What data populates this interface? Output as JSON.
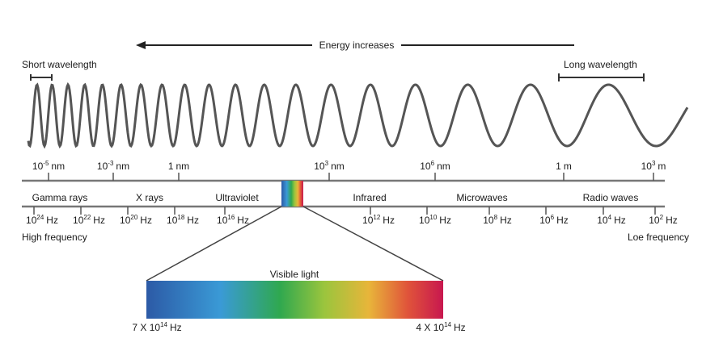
{
  "energy_label": "Energy increases",
  "short_wavelength": "Short wavelength",
  "long_wavelength": "Long wavelength",
  "wavelengths": [
    {
      "base": "10",
      "exp": "-5",
      "unit": "nm"
    },
    {
      "base": "10",
      "exp": "-3",
      "unit": "nm"
    },
    {
      "base": "1",
      "unit": "nm"
    },
    {
      "base": "10",
      "exp": "3",
      "unit": "nm"
    },
    {
      "base": "10",
      "exp": "6",
      "unit": "nm"
    },
    {
      "base": "1",
      "unit": "m"
    },
    {
      "base": "10",
      "exp": "3",
      "unit": "m"
    }
  ],
  "bands": [
    "Gamma rays",
    "X rays",
    "Ultraviolet",
    "Infrared",
    "Microwaves",
    "Radio waves"
  ],
  "frequencies": [
    {
      "base": "10",
      "exp": "24",
      "unit": "Hz"
    },
    {
      "base": "10",
      "exp": "22",
      "unit": "Hz"
    },
    {
      "base": "10",
      "exp": "20",
      "unit": "Hz"
    },
    {
      "base": "10",
      "exp": "18",
      "unit": "Hz"
    },
    {
      "base": "10",
      "exp": "16",
      "unit": "Hz"
    },
    {
      "base": "10",
      "exp": "12",
      "unit": "Hz"
    },
    {
      "base": "10",
      "exp": "10",
      "unit": "Hz"
    },
    {
      "base": "10",
      "exp": "8",
      "unit": "Hz"
    },
    {
      "base": "10",
      "exp": "6",
      "unit": "Hz"
    },
    {
      "base": "10",
      "exp": "4",
      "unit": "Hz"
    },
    {
      "base": "10",
      "exp": "2",
      "unit": "Hz"
    }
  ],
  "high_frequency": "High frequency",
  "low_frequency": "Loe frequency",
  "visible_light": {
    "title": "Visible light",
    "left": {
      "base": "7 X 10",
      "exp": "14",
      "unit": "Hz"
    },
    "right": {
      "base": "4 X 10",
      "exp": "14",
      "unit": "Hz"
    }
  }
}
